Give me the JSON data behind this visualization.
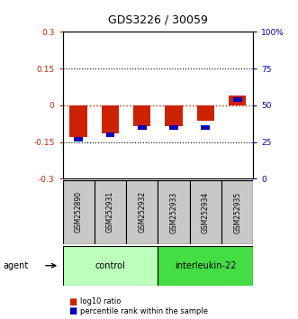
{
  "title": "GDS3226 / 30059",
  "samples": [
    "GSM252890",
    "GSM252931",
    "GSM252932",
    "GSM252933",
    "GSM252934",
    "GSM252935"
  ],
  "log10_ratio": [
    -0.13,
    -0.115,
    -0.085,
    -0.085,
    -0.065,
    0.04
  ],
  "percentile_rank": [
    27,
    30,
    35,
    35,
    35,
    54
  ],
  "ylim_left": [
    -0.3,
    0.3
  ],
  "ylim_right": [
    0,
    100
  ],
  "yticks_left": [
    -0.3,
    -0.15,
    0,
    0.15,
    0.3
  ],
  "ytick_labels_left": [
    "-0.3",
    "-0.15",
    "0",
    "0.15",
    "0.3"
  ],
  "yticks_right": [
    0,
    25,
    50,
    75,
    100
  ],
  "ytick_labels_right": [
    "0",
    "25",
    "50",
    "75",
    "100%"
  ],
  "hlines": [
    -0.15,
    0.15
  ],
  "red_color": "#CC2200",
  "blue_color": "#0000BB",
  "left_axis_color": "#CC2200",
  "right_axis_color": "#0000BB",
  "legend_red_label": "log10 ratio",
  "legend_blue_label": "percentile rank within the sample",
  "background_color": "#ffffff",
  "gray_label_bg": "#c8c8c8",
  "control_color": "#bbffbb",
  "interleukin_color": "#44dd44",
  "control_label": "control",
  "interleukin_label": "interleukin-22",
  "agent_label": "agent"
}
